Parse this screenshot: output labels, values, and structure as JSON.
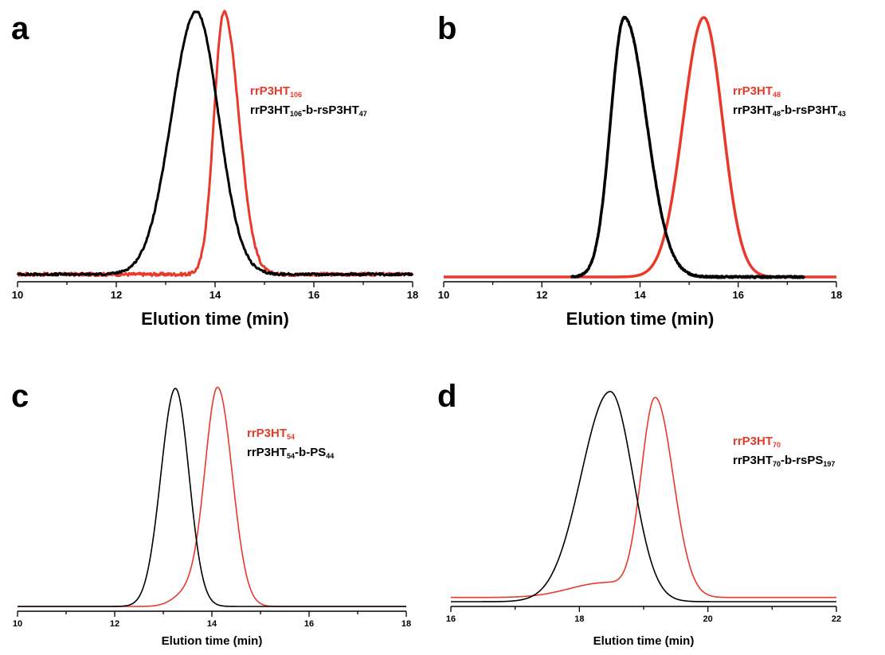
{
  "colors": {
    "red": "#e8392b",
    "black": "#000000"
  },
  "chart_data": [
    {
      "id": "a",
      "type": "line",
      "panel_label": "a",
      "xlabel": "Elution time (min)",
      "xlim": [
        10,
        18
      ],
      "xticks": [
        10,
        12,
        14,
        16,
        18
      ],
      "ylabel": "",
      "grid": false,
      "legend_placement": "top-right",
      "series": [
        {
          "legend": [
            {
              "t": "rrP3HT"
            },
            {
              "t": "106",
              "sub": true
            }
          ],
          "color": "#e8392b",
          "peaks": [
            {
              "center": 14.18,
              "wl": 0.2,
              "wr": 0.3,
              "amp": 1.0
            }
          ],
          "baseline": 0.01,
          "noise": 0.006
        },
        {
          "legend": [
            {
              "t": "rrP3HT"
            },
            {
              "t": "106",
              "sub": true
            },
            {
              "t": "-b-rsP3HT"
            },
            {
              "t": "47",
              "sub": true
            }
          ],
          "color": "#000000",
          "peaks": [
            {
              "center": 13.62,
              "wl": 0.5,
              "wr": 0.45,
              "amp": 1.0
            }
          ],
          "baseline": 0.01,
          "noise": 0.004
        }
      ]
    },
    {
      "id": "b",
      "type": "line",
      "panel_label": "b",
      "xlabel": "Elution time (min)",
      "xlim": [
        10,
        18
      ],
      "xticks": [
        10,
        12,
        14,
        16,
        18
      ],
      "ylabel": "",
      "grid": false,
      "legend_placement": "top-right",
      "series": [
        {
          "legend": [
            {
              "t": "rrP3HT"
            },
            {
              "t": "48",
              "sub": true
            }
          ],
          "color": "#e8392b",
          "peaks": [
            {
              "center": 15.3,
              "wl": 0.42,
              "wr": 0.38,
              "amp": 1.0
            }
          ],
          "baseline": 0.0,
          "noise": 0.0,
          "xmin": 10.0
        },
        {
          "legend": [
            {
              "t": "rrP3HT"
            },
            {
              "t": "48",
              "sub": true
            },
            {
              "t": "-b-rsP3HT"
            },
            {
              "t": "43",
              "sub": true
            }
          ],
          "color": "#000000",
          "peaks": [
            {
              "center": 13.68,
              "wl": 0.28,
              "wr": 0.45,
              "amp": 1.0
            }
          ],
          "baseline": 0.0,
          "noise": 0.003,
          "xmin": 12.6,
          "xmax": 17.35
        }
      ]
    },
    {
      "id": "c",
      "type": "line",
      "panel_label": "c",
      "xlabel": "Elution time (min)",
      "xlim": [
        10,
        18
      ],
      "xticks": [
        10,
        12,
        14,
        16,
        18
      ],
      "ylabel": "",
      "grid": false,
      "legend_placement": "top-right",
      "series": [
        {
          "legend": [
            {
              "t": "rrP3HT"
            },
            {
              "t": "54",
              "sub": true
            }
          ],
          "color": "#e8392b",
          "peaks": [
            {
              "center": 14.12,
              "wl": 0.26,
              "wr": 0.3,
              "amp": 1.0
            },
            {
              "center": 13.55,
              "wl": 0.3,
              "wr": 0.25,
              "amp": 0.07
            }
          ],
          "baseline": 0.0,
          "noise": 0.0
        },
        {
          "legend": [
            {
              "t": "rrP3HT"
            },
            {
              "t": "54",
              "sub": true
            },
            {
              "t": "-b-PS"
            },
            {
              "t": "44",
              "sub": true
            }
          ],
          "color": "#000000",
          "peaks": [
            {
              "center": 13.25,
              "wl": 0.3,
              "wr": 0.28,
              "amp": 1.0
            }
          ],
          "baseline": 0.0,
          "noise": 0.0
        }
      ]
    },
    {
      "id": "d",
      "type": "line",
      "panel_label": "d",
      "xlabel": "Elution time (min)",
      "xlim": [
        16,
        22
      ],
      "xticks": [
        16,
        18,
        20,
        22
      ],
      "ylabel": "",
      "grid": false,
      "legend_placement": "top-right",
      "series": [
        {
          "legend": [
            {
              "t": "rrP3HT"
            },
            {
              "t": "70",
              "sub": true
            }
          ],
          "color": "#e8392b",
          "peaks": [
            {
              "center": 19.18,
              "wl": 0.22,
              "wr": 0.28,
              "amp": 0.95
            },
            {
              "center": 18.4,
              "wl": 0.55,
              "wr": 0.3,
              "amp": 0.07
            }
          ],
          "baseline": 0.02,
          "noise": 0.0
        },
        {
          "legend": [
            {
              "t": "rrP3HT"
            },
            {
              "t": "70",
              "sub": true
            },
            {
              "t": "-b-rsPS"
            },
            {
              "t": "197",
              "sub": true
            }
          ],
          "color": "#000000",
          "peaks": [
            {
              "center": 18.48,
              "wl": 0.45,
              "wr": 0.35,
              "amp": 1.0
            }
          ],
          "baseline": 0.0,
          "noise": 0.0
        }
      ]
    }
  ]
}
